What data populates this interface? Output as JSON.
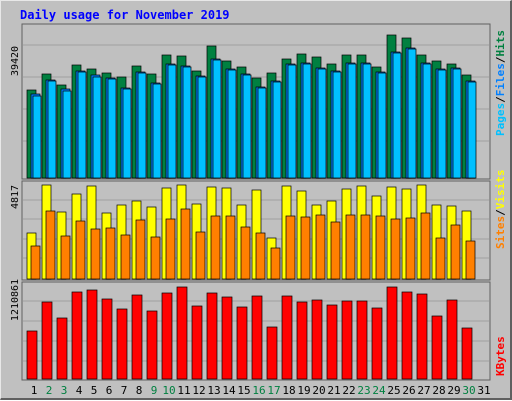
{
  "title": "Daily usage for November 2019",
  "colors": {
    "background": "#c0c0c0",
    "plot_bg": "#c0c0c0",
    "grid": "#a0a0a0",
    "title": "#0000ff",
    "hits": "#008040",
    "files": "#0080ff",
    "pages": "#00c0ff",
    "visits": "#ffff00",
    "sites": "#ff8000",
    "kbytes": "#ff0000",
    "weekend_day": "#008040",
    "weekday": "#000000"
  },
  "chart_data": [
    {
      "type": "bar",
      "name": "hits-files-pages",
      "max_label": "39420",
      "ylim": [
        0,
        42000
      ],
      "categories": [
        "1",
        "2",
        "3",
        "4",
        "5",
        "6",
        "7",
        "8",
        "9",
        "10",
        "11",
        "12",
        "13",
        "14",
        "15",
        "16",
        "17",
        "18",
        "19",
        "20",
        "21",
        "22",
        "23",
        "24",
        "25",
        "26",
        "27",
        "28",
        "29",
        "30",
        "31"
      ],
      "series": [
        {
          "name": "Hits",
          "color": "#008040",
          "values": [
            24200,
            28600,
            25600,
            30900,
            30000,
            28800,
            27800,
            30700,
            28600,
            33800,
            33600,
            29500,
            36300,
            32100,
            30400,
            27500,
            28700,
            32600,
            34000,
            33100,
            31400,
            33800,
            33800,
            30600,
            39200,
            38300,
            33900,
            32100,
            31300,
            28400,
            0
          ]
        },
        {
          "name": "Files",
          "color": "#0080ff",
          "values": [
            23000,
            27000,
            24300,
            29300,
            28200,
            27500,
            24800,
            29200,
            26200,
            31400,
            30800,
            28100,
            32600,
            29900,
            28500,
            25000,
            26700,
            31200,
            31700,
            30300,
            29500,
            31700,
            31700,
            29200,
            34500,
            35600,
            31600,
            29900,
            30200,
            26700,
            0
          ]
        },
        {
          "name": "Pages",
          "color": "#00c0ff",
          "values": [
            22500,
            26500,
            24000,
            29000,
            27700,
            27200,
            24500,
            28800,
            25800,
            31000,
            30500,
            27800,
            32300,
            29600,
            28300,
            24800,
            26400,
            31000,
            31400,
            30000,
            29200,
            31400,
            31400,
            28900,
            34200,
            35300,
            31300,
            29600,
            29900,
            26400,
            0
          ]
        }
      ]
    },
    {
      "type": "bar",
      "name": "visits-sites",
      "max_label": "4817",
      "ylim": [
        0,
        4960
      ],
      "categories": [
        "1",
        "2",
        "3",
        "4",
        "5",
        "6",
        "7",
        "8",
        "9",
        "10",
        "11",
        "12",
        "13",
        "14",
        "15",
        "16",
        "17",
        "18",
        "19",
        "20",
        "21",
        "22",
        "23",
        "24",
        "25",
        "26",
        "27",
        "28",
        "29",
        "30",
        "31"
      ],
      "series": [
        {
          "name": "Visits",
          "color": "#ffff00",
          "values": [
            2350,
            4790,
            3410,
            4350,
            4730,
            3400,
            3800,
            4010,
            3700,
            4650,
            4790,
            3830,
            4720,
            4630,
            3800,
            4530,
            2110,
            4780,
            4520,
            3800,
            4010,
            4600,
            4780,
            4220,
            4680,
            4620,
            4790,
            3760,
            3720,
            3500,
            0
          ]
        },
        {
          "name": "Sites",
          "color": "#ff8000",
          "values": [
            1670,
            3500,
            2200,
            2960,
            2550,
            2590,
            2240,
            3000,
            2150,
            3080,
            3600,
            2400,
            3240,
            3200,
            2680,
            2350,
            1560,
            3240,
            3150,
            3270,
            2910,
            3290,
            3260,
            3240,
            3070,
            3130,
            3400,
            2110,
            2740,
            1950,
            0
          ]
        }
      ]
    },
    {
      "type": "bar",
      "name": "kbytes",
      "max_label": "1210861",
      "ylim": [
        0,
        1290000
      ],
      "categories": [
        "1",
        "2",
        "3",
        "4",
        "5",
        "6",
        "7",
        "8",
        "9",
        "10",
        "11",
        "12",
        "13",
        "14",
        "15",
        "16",
        "17",
        "18",
        "19",
        "20",
        "21",
        "22",
        "23",
        "24",
        "25",
        "26",
        "27",
        "28",
        "29",
        "30",
        "31"
      ],
      "series": [
        {
          "name": "KBytes",
          "color": "#ff0000",
          "values": [
            640000,
            1040000,
            820000,
            1170000,
            1200000,
            1080000,
            940000,
            1130000,
            910000,
            1160000,
            1230000,
            980000,
            1160000,
            1100000,
            970000,
            1110000,
            700000,
            1120000,
            1030000,
            1060000,
            990000,
            1050000,
            1050000,
            950000,
            1240000,
            1170000,
            1140000,
            840000,
            1060000,
            690000,
            0
          ]
        }
      ]
    }
  ],
  "x_axis": {
    "days": [
      "1",
      "2",
      "3",
      "4",
      "5",
      "6",
      "7",
      "8",
      "9",
      "10",
      "11",
      "12",
      "13",
      "14",
      "15",
      "16",
      "17",
      "18",
      "19",
      "20",
      "21",
      "22",
      "23",
      "24",
      "25",
      "26",
      "27",
      "28",
      "29",
      "30",
      "31"
    ],
    "weekend_days": [
      "2",
      "3",
      "9",
      "10",
      "16",
      "17",
      "23",
      "24",
      "30"
    ]
  },
  "legend": {
    "top": [
      "Hits",
      "Files",
      "Pages"
    ],
    "middle": [
      "Visits",
      "Sites"
    ],
    "bottom": [
      "KBytes"
    ]
  }
}
